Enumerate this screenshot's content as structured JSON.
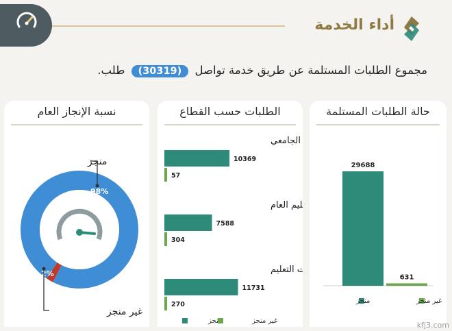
{
  "header": {
    "title": "أداء الخدمة",
    "summary_prefix": "مجموع الطلبات المستلمة عن طريق خدمة تواصل",
    "summary_value": "(30319)",
    "summary_suffix": "طلب."
  },
  "colors": {
    "completed": "#2e8b7a",
    "not_completed": "#6aa84f",
    "donut_main": "#3f8dd5",
    "donut_minor": "#c0392b",
    "accent": "#8f7a43"
  },
  "icons": [
    "speedometer-icon",
    "logo-icon"
  ],
  "panels": {
    "status": {
      "title": "حالة الطلبات المستلمة"
    },
    "sector": {
      "title": "الطلبات حسب القطاع"
    },
    "completion": {
      "title": "نسبة الإنجاز العام"
    }
  },
  "chart_data": [
    {
      "type": "bar",
      "title": "حالة الطلبات المستلمة",
      "categories": [
        "منجز",
        "غير منجز"
      ],
      "values": [
        29688,
        631
      ],
      "legend": [
        "منجز",
        "غير منجز"
      ],
      "ylim": [
        0,
        32000
      ]
    },
    {
      "type": "bar",
      "orientation": "horizontal",
      "title": "الطلبات حسب القطاع",
      "categories": [
        "التعليم الجامعي",
        "التعليم العام",
        "إدارات التعليم"
      ],
      "series": [
        {
          "name": "منجز",
          "values": [
            10369,
            7588,
            11731
          ]
        },
        {
          "name": "غير منجز",
          "values": [
            57,
            304,
            270
          ]
        }
      ],
      "legend": [
        "منجز",
        "غير منجز"
      ],
      "xlim": [
        0,
        12000
      ]
    },
    {
      "type": "pie",
      "style": "donut",
      "title": "نسبة الإنجاز العام",
      "labels": [
        "منجز",
        "غير منجز"
      ],
      "values": [
        98,
        2
      ],
      "value_labels": [
        "98%",
        "2%"
      ]
    }
  ],
  "watermark": "kfj3.com"
}
